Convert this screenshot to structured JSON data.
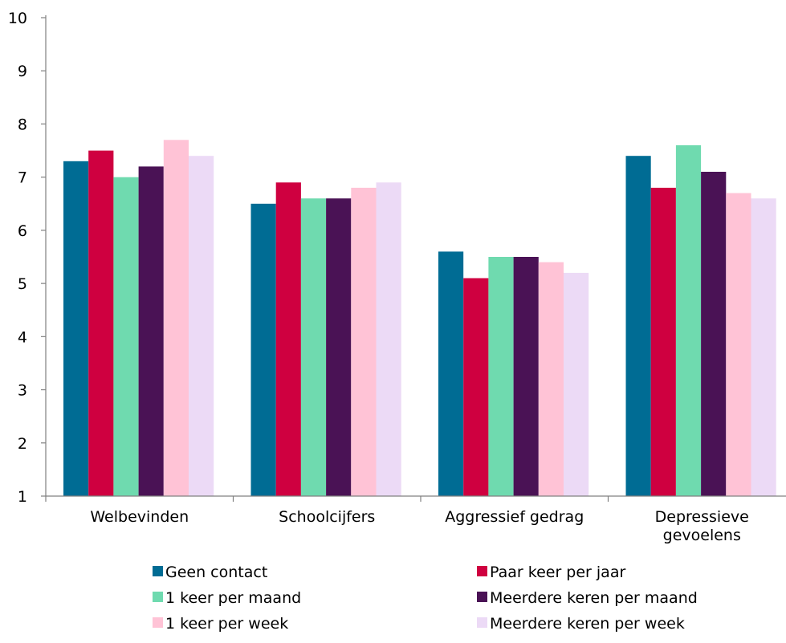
{
  "chart_data": {
    "type": "bar",
    "title": "",
    "xlabel": "",
    "ylabel": "",
    "ylim": [
      1,
      10
    ],
    "yticks": [
      1,
      2,
      3,
      4,
      5,
      6,
      7,
      8,
      9,
      10
    ],
    "grid": false,
    "legend_position": "bottom",
    "categories": [
      [
        "Welbevinden"
      ],
      [
        "Schoolcijfers"
      ],
      [
        "Aggressief gedrag"
      ],
      [
        "Depressieve",
        "gevoelens"
      ]
    ],
    "series": [
      {
        "name": "Geen contact",
        "color": "#006c94",
        "values": [
          7.3,
          6.5,
          5.6,
          7.4
        ]
      },
      {
        "name": "Paar keer per jaar",
        "color": "#cf0040",
        "values": [
          7.5,
          6.9,
          5.1,
          6.8
        ]
      },
      {
        "name": "1 keer per maand",
        "color": "#6fdaaf",
        "values": [
          7.0,
          6.6,
          5.5,
          7.6
        ]
      },
      {
        "name": "Meerdere keren per maand",
        "color": "#4a1255",
        "values": [
          7.2,
          6.6,
          5.5,
          7.1
        ]
      },
      {
        "name": "1 keer per week",
        "color": "#ffc3d6",
        "values": [
          7.7,
          6.8,
          5.4,
          6.7
        ]
      },
      {
        "name": "Meerdere keren per week",
        "color": "#ecdaf6",
        "values": [
          7.4,
          6.9,
          5.2,
          6.6
        ]
      }
    ]
  }
}
